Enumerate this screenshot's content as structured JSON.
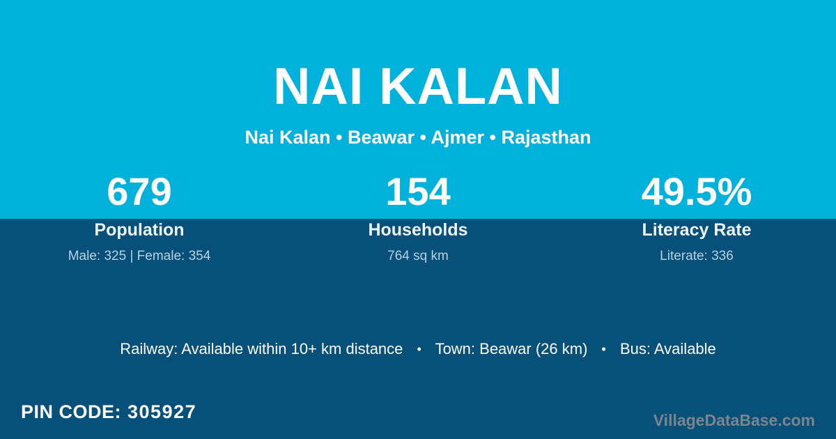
{
  "colors": {
    "top_background": "#00B1DC",
    "bottom_background": "#07507A",
    "primary_text": "#ffffff",
    "label_text": "#eef5f9",
    "detail_text": "#b7d2e1",
    "watermark_text": "#7b868c"
  },
  "header": {
    "title": "NAI KALAN",
    "breadcrumb": "Nai Kalan • Beawar • Ajmer • Rajasthan"
  },
  "stats": [
    {
      "value": "679",
      "label": "Population",
      "detail": "Male: 325 | Female: 354"
    },
    {
      "value": "154",
      "label": "Households",
      "detail": "764 sq km"
    },
    {
      "value": "49.5%",
      "label": "Literacy Rate",
      "detail": "Literate: 336"
    }
  ],
  "transport": {
    "separator": "•",
    "segments": [
      "Railway: Available within 10+ km distance",
      "Town: Beawar (26 km)",
      "Bus: Available"
    ]
  },
  "footer": {
    "pin_label": "PIN CODE:",
    "pin_value": "305927",
    "watermark": "VillageDataBase.com"
  }
}
